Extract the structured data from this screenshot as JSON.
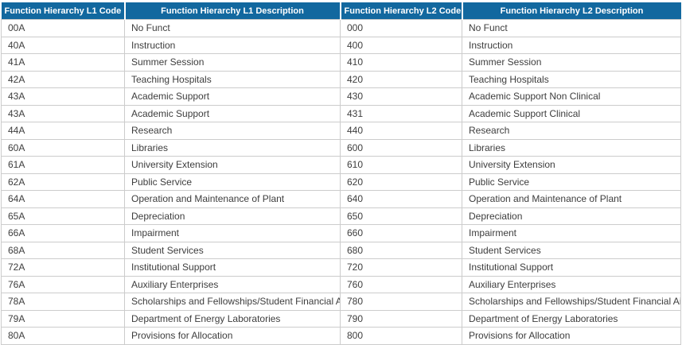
{
  "table": {
    "columns": [
      {
        "label": "Function Hierarchy L1 Code"
      },
      {
        "label": "Function Hierarchy L1 Description"
      },
      {
        "label": "Function Hierarchy L2 Code"
      },
      {
        "label": "Function Hierarchy L2 Description"
      }
    ],
    "rows": [
      [
        "00A",
        "No Funct",
        "000",
        "No Funct"
      ],
      [
        "40A",
        "Instruction",
        "400",
        "Instruction"
      ],
      [
        "41A",
        "Summer Session",
        "410",
        "Summer Session"
      ],
      [
        "42A",
        "Teaching Hospitals",
        "420",
        "Teaching Hospitals"
      ],
      [
        "43A",
        "Academic Support",
        "430",
        "Academic Support Non Clinical"
      ],
      [
        "43A",
        "Academic Support",
        "431",
        "Academic Support Clinical"
      ],
      [
        "44A",
        "Research",
        "440",
        "Research"
      ],
      [
        "60A",
        "Libraries",
        "600",
        "Libraries"
      ],
      [
        "61A",
        "University Extension",
        "610",
        "University Extension"
      ],
      [
        "62A",
        "Public Service",
        "620",
        "Public Service"
      ],
      [
        "64A",
        "Operation and Maintenance of Plant",
        "640",
        "Operation and Maintenance of Plant"
      ],
      [
        "65A",
        "Depreciation",
        "650",
        "Depreciation"
      ],
      [
        "66A",
        "Impairment",
        "660",
        "Impairment"
      ],
      [
        "68A",
        "Student Services",
        "680",
        "Student Services"
      ],
      [
        "72A",
        "Institutional Support",
        "720",
        "Institutional Support"
      ],
      [
        "76A",
        "Auxiliary Enterprises",
        "760",
        "Auxiliary Enterprises"
      ],
      [
        "78A",
        "Scholarships and Fellowships/Student Financial Aid",
        "780",
        "Scholarships and Fellowships/Student Financial Aid"
      ],
      [
        "79A",
        "Department of Energy Laboratories",
        "790",
        "Department of Energy Laboratories"
      ],
      [
        "80A",
        "Provisions for Allocation",
        "800",
        "Provisions for Allocation"
      ]
    ]
  },
  "colors": {
    "header_bg": "#12689f",
    "header_text": "#ffffff",
    "body_text": "#3d3d3d",
    "border": "#cccccc"
  }
}
